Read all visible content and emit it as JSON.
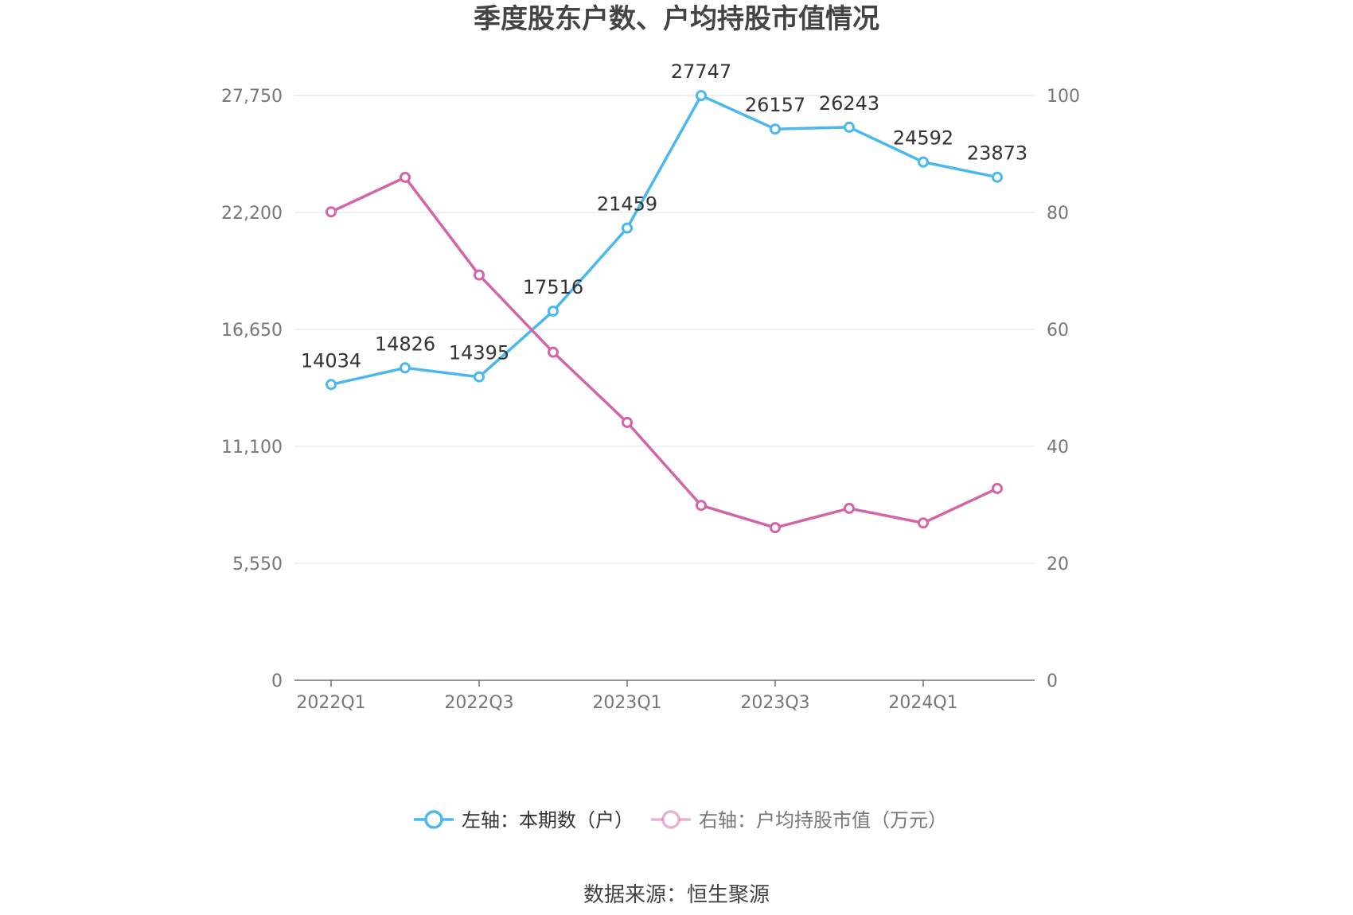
{
  "chart_data": {
    "type": "line",
    "title": "季度股东户数、户均持股市值情况",
    "categories": [
      "2022Q1",
      "2022Q2",
      "2022Q3",
      "2022Q4",
      "2023Q1",
      "2023Q2",
      "2023Q3",
      "2023Q4",
      "2024Q1",
      "2024Q2"
    ],
    "x_tick_labels": [
      "2022Q1",
      "2022Q3",
      "2023Q1",
      "2023Q3",
      "2024Q1"
    ],
    "left_axis": {
      "ylim": [
        0,
        27750
      ],
      "ticks": [
        0,
        5550,
        11100,
        16650,
        22200,
        27750
      ],
      "tick_labels": [
        "0",
        "5,550",
        "11,100",
        "16,650",
        "22,200",
        "27,750"
      ]
    },
    "right_axis": {
      "ylim": [
        0,
        100
      ],
      "ticks": [
        0,
        20,
        40,
        60,
        80,
        100
      ],
      "tick_labels": [
        "0",
        "20",
        "40",
        "60",
        "80",
        "100"
      ]
    },
    "grid": true,
    "legend_position": "bottom-center",
    "series": [
      {
        "name": "左轴：本期数（户）",
        "axis": "left",
        "color": "#4ab8ee",
        "values": [
          14034,
          14826,
          14395,
          17516,
          21459,
          27747,
          26157,
          26243,
          24592,
          23873
        ],
        "show_labels": true
      },
      {
        "name": "右轴：户均持股市值（万元）",
        "axis": "right",
        "color": "#d464a8",
        "values": [
          80.1,
          86.0,
          69.3,
          56.1,
          44.1,
          29.9,
          26.1,
          29.4,
          26.9,
          32.8
        ],
        "show_labels": false
      }
    ],
    "source": "数据来源：恒生聚源"
  }
}
